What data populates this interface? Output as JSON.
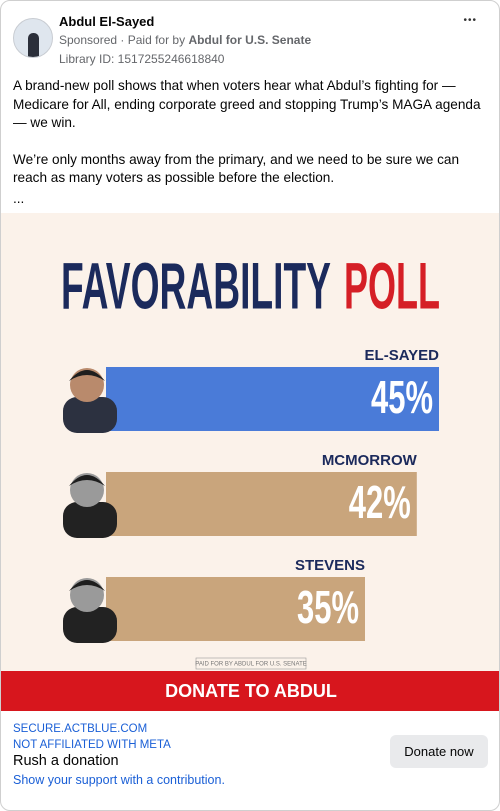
{
  "post": {
    "author": "Abdul El-Sayed",
    "sponsored": "Sponsored",
    "paid_for_prefix": "Paid for by",
    "sponsor": "Abdul for U.S. Senate",
    "library_id": "Library ID: 1517255246618840",
    "menu": "•••",
    "body": [
      "A brand-new poll shows that when voters hear what Abdul’s fighting for — Medicare for All, ending corporate greed and stopping Trump’s MAGA agenda — we win.",
      "We’re only months away from the primary, and we need to be sure we can reach as many voters as possible before the election.",
      "..."
    ]
  },
  "chart_data": {
    "type": "bar",
    "title": [
      "FAVORABILITY",
      "POLL"
    ],
    "categories": [
      "EL-SAYED",
      "MCMORROW",
      "STEVENS"
    ],
    "values": [
      45,
      42,
      35
    ],
    "value_labels": [
      "45%",
      "42%",
      "35%"
    ],
    "colors": [
      "#4a7bd8",
      "#c9a57c",
      "#c9a57c"
    ],
    "disclaimer": "PAID FOR BY ABDUL FOR U.S. SENATE"
  },
  "banner": "DONATE TO ABDUL",
  "footer": {
    "domain": "SECURE.ACTBLUE.COM",
    "notice": "NOT AFFILIATED WITH META",
    "headline": "Rush a donation",
    "description": "Show your support with a contribution.",
    "button": "Donate now"
  }
}
